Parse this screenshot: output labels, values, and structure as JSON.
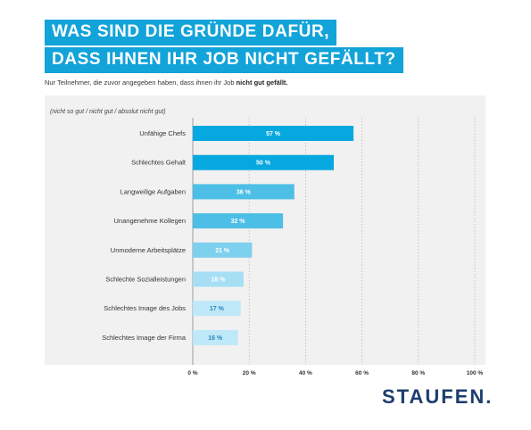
{
  "header": {
    "title_line1": "WAS SIND DIE GRÜNDE DAFÜR,",
    "title_line2": "DASS IHNEN IHR JOB NICHT GEFÄLLT?",
    "subtitle_prefix": "Nur Teilnehmer, die zuvor angegeben haben, dass ihnen ihr Job ",
    "subtitle_bold": "nicht gut gefällt."
  },
  "brand": {
    "logo_text": "STAUFEN."
  },
  "chart_data": {
    "type": "bar",
    "orientation": "horizontal",
    "category_header": "(nicht so gut / nicht gut / absolut nicht gut)",
    "categories": [
      "Unfähige Chefs",
      "Schlechtes Gehalt",
      "Langweilige Aufgaben",
      "Unangenehme Kollegen",
      "Unmoderne Arbeitsplätze",
      "Schlechte Sozialleistungen",
      "Schlechtes Image des Jobs",
      "Schlechtes Image der Firma"
    ],
    "values": [
      57,
      50,
      36,
      32,
      21,
      18,
      17,
      16
    ],
    "value_labels": [
      "57 %",
      "50 %",
      "36 %",
      "32 %",
      "21 %",
      "18 %",
      "17 %",
      "16 %"
    ],
    "bar_colors": [
      "#05a8df",
      "#05a8df",
      "#4dbfe6",
      "#4dbfe6",
      "#7dd0ee",
      "#a6dff4",
      "#bfe8f8",
      "#bfe8f8"
    ],
    "value_label_colors": [
      "#ffffff",
      "#ffffff",
      "#ffffff",
      "#ffffff",
      "#ffffff",
      "#ffffff",
      "#2a86bf",
      "#2a86bf"
    ],
    "x_ticks": [
      0,
      20,
      40,
      60,
      80,
      100
    ],
    "x_tick_labels": [
      "0 %",
      "20 %",
      "40 %",
      "60 %",
      "80 %",
      "100 %"
    ],
    "xlim": [
      0,
      100
    ],
    "grid": true
  }
}
